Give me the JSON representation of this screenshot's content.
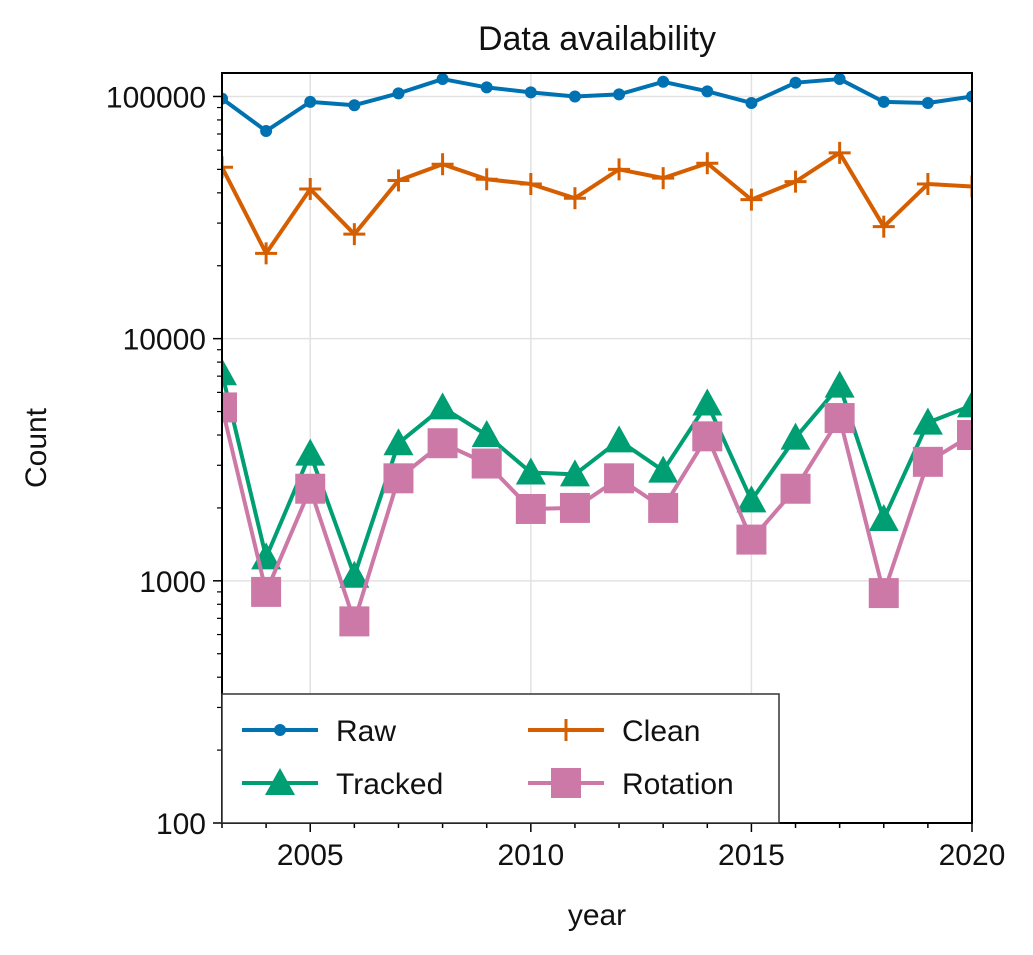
{
  "chart_data": {
    "type": "line",
    "title": "Data availability",
    "xlabel": "year",
    "ylabel": "Count",
    "yscale": "log",
    "xlim": [
      2003,
      2020
    ],
    "ylim": [
      100,
      125000
    ],
    "grid": true,
    "legend_position": "lower-left",
    "x": [
      2003,
      2004,
      2005,
      2006,
      2007,
      2008,
      2009,
      2010,
      2011,
      2012,
      2013,
      2014,
      2015,
      2016,
      2017,
      2018,
      2019,
      2020
    ],
    "x_ticks": [
      "2005",
      "2010",
      "2015",
      "2020"
    ],
    "y_ticks": [
      "100",
      "1000",
      "10000",
      "100000"
    ],
    "series": [
      {
        "name": "Raw",
        "marker": "circle",
        "color": "#0072B2",
        "values": [
          98000,
          72000,
          95000,
          92000,
          103000,
          118000,
          109000,
          104000,
          100000,
          102000,
          115000,
          105000,
          94000,
          114000,
          118000,
          95000,
          94000,
          100000
        ]
      },
      {
        "name": "Clean",
        "marker": "plus",
        "color": "#D55E00",
        "values": [
          51000,
          22500,
          41500,
          27000,
          45000,
          52500,
          45500,
          43500,
          38000,
          50000,
          46000,
          53000,
          37500,
          44500,
          58500,
          29000,
          43500,
          42500
        ]
      },
      {
        "name": "Tracked",
        "marker": "triangle",
        "color": "#009E73",
        "values": [
          7200,
          1250,
          3350,
          1050,
          3700,
          5200,
          4000,
          2800,
          2750,
          3800,
          2850,
          5400,
          2150,
          3900,
          6400,
          1800,
          4500,
          5300
        ]
      },
      {
        "name": "Rotation",
        "marker": "square",
        "color": "#CC79A7",
        "values": [
          5200,
          900,
          2400,
          680,
          2650,
          3700,
          3050,
          1980,
          2000,
          2650,
          2000,
          3950,
          1480,
          2400,
          4700,
          890,
          3100,
          4000
        ]
      }
    ]
  }
}
